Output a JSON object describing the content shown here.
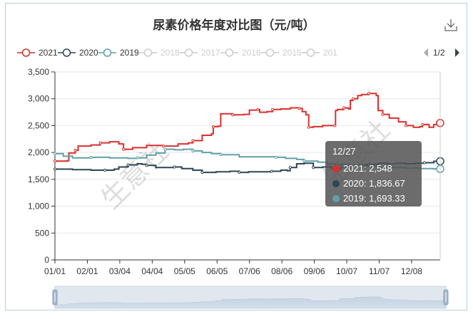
{
  "chart_data": {
    "type": "line",
    "title": "尿素价格年度对比图（元/吨）",
    "xlabel": "",
    "ylabel": "",
    "ylim": [
      0,
      3500
    ],
    "yticks": [
      0,
      500,
      1000,
      1500,
      2000,
      2500,
      3000,
      3500
    ],
    "ytick_labels": [
      "0",
      "500",
      "1,000",
      "1,500",
      "2,000",
      "2,500",
      "3,000",
      "3,500"
    ],
    "xticks": [
      "01/01",
      "02/01",
      "03/04",
      "04/04",
      "05/05",
      "06/05",
      "07/06",
      "08/06",
      "09/06",
      "10/07",
      "11/07",
      "12/08"
    ],
    "grid": true,
    "legend_position": "top",
    "legend_page": "1/2",
    "legend": [
      {
        "label": "2021",
        "color": "#d9302c",
        "active": true
      },
      {
        "label": "2020",
        "color": "#2f4554",
        "active": true
      },
      {
        "label": "2019",
        "color": "#61a0a8",
        "active": true
      },
      {
        "label": "2018",
        "color": "#cccccc",
        "active": false
      },
      {
        "label": "2017",
        "color": "#cccccc",
        "active": false
      },
      {
        "label": "2016",
        "color": "#cccccc",
        "active": false
      },
      {
        "label": "2015",
        "color": "#cccccc",
        "active": false
      },
      {
        "label": "201",
        "color": "#cccccc",
        "active": false
      }
    ],
    "x_day_range": [
      1,
      362
    ],
    "series": [
      {
        "name": "2021",
        "color": "#d9302c",
        "points": [
          [
            1,
            1840
          ],
          [
            14,
            1845
          ],
          [
            16,
            1990
          ],
          [
            23,
            2040
          ],
          [
            26,
            2120
          ],
          [
            40,
            2140
          ],
          [
            50,
            2180
          ],
          [
            60,
            2200
          ],
          [
            70,
            2160
          ],
          [
            75,
            2060
          ],
          [
            85,
            2090
          ],
          [
            100,
            2130
          ],
          [
            118,
            2120
          ],
          [
            134,
            2160
          ],
          [
            145,
            2180
          ],
          [
            150,
            2220
          ],
          [
            160,
            2320
          ],
          [
            170,
            2350
          ],
          [
            172,
            2480
          ],
          [
            177,
            2490
          ],
          [
            180,
            2720
          ],
          [
            193,
            2700
          ],
          [
            205,
            2710
          ],
          [
            211,
            2790
          ],
          [
            220,
            2800
          ],
          [
            222,
            2750
          ],
          [
            230,
            2760
          ],
          [
            236,
            2800
          ],
          [
            245,
            2810
          ],
          [
            255,
            2830
          ],
          [
            265,
            2820
          ],
          [
            268,
            2760
          ],
          [
            272,
            2700
          ],
          [
            275,
            2470
          ],
          [
            280,
            2480
          ],
          [
            290,
            2500
          ],
          [
            303,
            2500
          ],
          [
            304,
            2780
          ],
          [
            306,
            2800
          ],
          [
            313,
            2830
          ],
          [
            318,
            2810
          ],
          [
            320,
            2970
          ],
          [
            323,
            3000
          ],
          [
            328,
            3060
          ],
          [
            332,
            3080
          ],
          [
            340,
            3100
          ],
          [
            348,
            3060
          ],
          [
            350,
            2780
          ],
          [
            355,
            2710
          ],
          [
            362,
            2640
          ],
          [
            372,
            2570
          ],
          [
            380,
            2500
          ],
          [
            388,
            2470
          ],
          [
            395,
            2480
          ],
          [
            398,
            2520
          ],
          [
            405,
            2470
          ],
          [
            410,
            2520
          ],
          [
            414,
            2560
          ],
          [
            417,
            2548
          ]
        ]
      },
      {
        "name": "2020",
        "color": "#2f4554",
        "points": [
          [
            1,
            1690
          ],
          [
            20,
            1680
          ],
          [
            40,
            1670
          ],
          [
            55,
            1670
          ],
          [
            65,
            1690
          ],
          [
            70,
            1730
          ],
          [
            80,
            1770
          ],
          [
            90,
            1790
          ],
          [
            95,
            1780
          ],
          [
            100,
            1760
          ],
          [
            110,
            1720
          ],
          [
            120,
            1720
          ],
          [
            130,
            1730
          ],
          [
            138,
            1700
          ],
          [
            150,
            1670
          ],
          [
            160,
            1630
          ],
          [
            175,
            1640
          ],
          [
            190,
            1650
          ],
          [
            200,
            1630
          ],
          [
            210,
            1640
          ],
          [
            225,
            1640
          ],
          [
            235,
            1650
          ],
          [
            245,
            1670
          ],
          [
            252,
            1660
          ],
          [
            255,
            1720
          ],
          [
            262,
            1790
          ],
          [
            270,
            1800
          ],
          [
            280,
            1720
          ],
          [
            290,
            1730
          ],
          [
            300,
            1700
          ],
          [
            310,
            1730
          ],
          [
            320,
            1760
          ],
          [
            330,
            1770
          ],
          [
            340,
            1780
          ],
          [
            350,
            1800
          ],
          [
            360,
            1790
          ],
          [
            370,
            1800
          ],
          [
            380,
            1790
          ],
          [
            390,
            1800
          ],
          [
            400,
            1810
          ],
          [
            410,
            1836
          ],
          [
            417,
            1836.67
          ]
        ]
      },
      {
        "name": "2019",
        "color": "#61a0a8",
        "points": [
          [
            1,
            1980
          ],
          [
            10,
            1930
          ],
          [
            20,
            1900
          ],
          [
            40,
            1910
          ],
          [
            60,
            1900
          ],
          [
            80,
            1890
          ],
          [
            90,
            1900
          ],
          [
            100,
            1950
          ],
          [
            110,
            1990
          ],
          [
            120,
            2060
          ],
          [
            130,
            2050
          ],
          [
            140,
            2060
          ],
          [
            150,
            2030
          ],
          [
            160,
            2000
          ],
          [
            170,
            1980
          ],
          [
            180,
            1960
          ],
          [
            200,
            1920
          ],
          [
            220,
            1920
          ],
          [
            240,
            1910
          ],
          [
            250,
            1890
          ],
          [
            262,
            1870
          ],
          [
            270,
            1840
          ],
          [
            285,
            1820
          ],
          [
            295,
            1790
          ],
          [
            305,
            1780
          ],
          [
            320,
            1760
          ],
          [
            335,
            1740
          ],
          [
            350,
            1730
          ],
          [
            365,
            1720
          ],
          [
            380,
            1710
          ],
          [
            395,
            1700
          ],
          [
            410,
            1695
          ],
          [
            417,
            1693.33
          ]
        ]
      }
    ],
    "tooltip": {
      "header": "12/27",
      "rows": [
        {
          "label": "2021: 2,548",
          "color": "#d9302c"
        },
        {
          "label": "2020: 1,836.67",
          "color": "#2f4554"
        },
        {
          "label": "2019: 1,693.33",
          "color": "#61a0a8"
        }
      ]
    }
  }
}
